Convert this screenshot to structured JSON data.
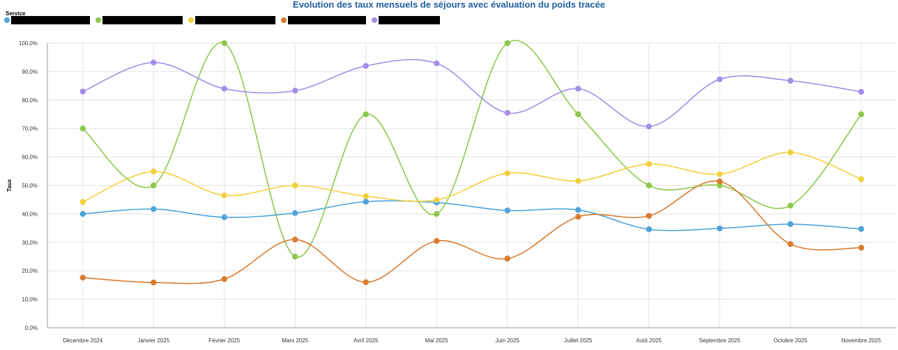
{
  "chart_data": {
    "type": "line",
    "title": "Evolution des taux mensuels de séjours avec évaluation du poids tracée",
    "legend_title": "Service",
    "legend_position": "top-left",
    "ylabel": "Taux",
    "xlabel": "",
    "ylim": [
      0,
      100
    ],
    "yticks": [
      0,
      10,
      20,
      30,
      40,
      50,
      60,
      70,
      80,
      90,
      100
    ],
    "ytick_labels": [
      "0,0%",
      "10,0%",
      "20,0%",
      "30,0%",
      "40,0%",
      "50,0%",
      "60,0%",
      "70,0%",
      "80,0%",
      "90,0%",
      "100,0%"
    ],
    "grid": true,
    "categories": [
      "Décembre 2024",
      "Janvier 2025",
      "Février 2025",
      "Mars 2025",
      "Avril 2025",
      "Mai 2025",
      "Juin 2025",
      "Juillet 2025",
      "Août 2025",
      "Septembre 2025",
      "Octobre 2025",
      "Novembre 2025"
    ],
    "series": [
      {
        "color": "#4da3da",
        "values": [
          40.0,
          41.7,
          38.8,
          40.3,
          44.3,
          44.0,
          41.2,
          41.4,
          34.6,
          34.9,
          36.4,
          34.7
        ]
      },
      {
        "color": "#8cc84b",
        "values": [
          70.0,
          50.0,
          100.0,
          25.0,
          75.0,
          40.0,
          100.0,
          75.0,
          50.0,
          50.0,
          42.9,
          75.0
        ]
      },
      {
        "color": "#f2d03b",
        "values": [
          44.2,
          54.9,
          46.5,
          50.0,
          46.2,
          44.9,
          54.3,
          51.6,
          57.5,
          54.0,
          61.6,
          52.2
        ]
      },
      {
        "color": "#d97b2e",
        "values": [
          17.6,
          15.9,
          17.1,
          31.0,
          16.0,
          30.5,
          24.3,
          39.0,
          39.3,
          51.4,
          29.4,
          28.1
        ]
      },
      {
        "color": "#a48de8",
        "values": [
          83.0,
          93.2,
          84.0,
          83.3,
          92.0,
          92.9,
          75.5,
          84.0,
          70.7,
          87.3,
          86.8,
          82.9
        ]
      }
    ]
  }
}
